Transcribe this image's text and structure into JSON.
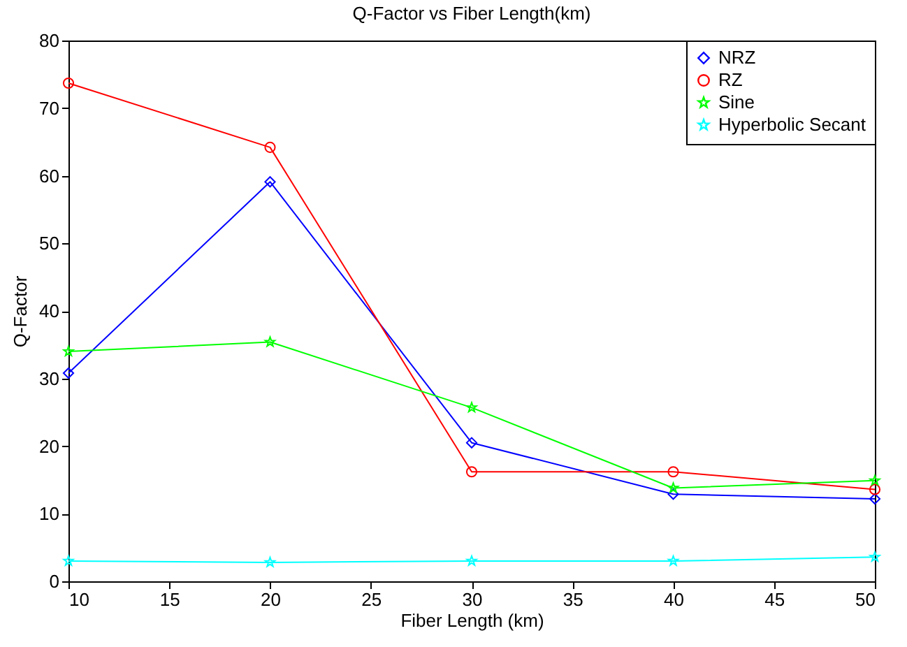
{
  "chart_data": {
    "type": "line",
    "title": "Q-Factor vs Fiber Length(km)",
    "xlabel": "Fiber Length (km)",
    "ylabel": "Q-Factor",
    "x": [
      10,
      20,
      30,
      40,
      50
    ],
    "xlim": [
      10,
      50
    ],
    "xticks": [
      10,
      15,
      20,
      25,
      30,
      35,
      40,
      45,
      50
    ],
    "ylim": [
      0,
      80
    ],
    "yticks": [
      0,
      10,
      20,
      30,
      40,
      50,
      60,
      70,
      80
    ],
    "grid": false,
    "legend": "top right",
    "series": [
      {
        "name": "NRZ",
        "color": "#0000ff",
        "marker": "diamond",
        "values": [
          30.8,
          59.1,
          20.5,
          12.9,
          12.2
        ]
      },
      {
        "name": "RZ",
        "color": "#ff0000",
        "marker": "circle",
        "values": [
          73.7,
          64.2,
          16.2,
          16.2,
          13.6
        ]
      },
      {
        "name": "Sine",
        "color": "#00ff00",
        "marker": "star",
        "values": [
          34.0,
          35.4,
          25.7,
          13.8,
          14.9
        ]
      },
      {
        "name": "Hyperbolic Secant",
        "color": "#00ffff",
        "marker": "star",
        "values": [
          3.0,
          2.8,
          3.0,
          3.0,
          3.6
        ]
      }
    ]
  }
}
